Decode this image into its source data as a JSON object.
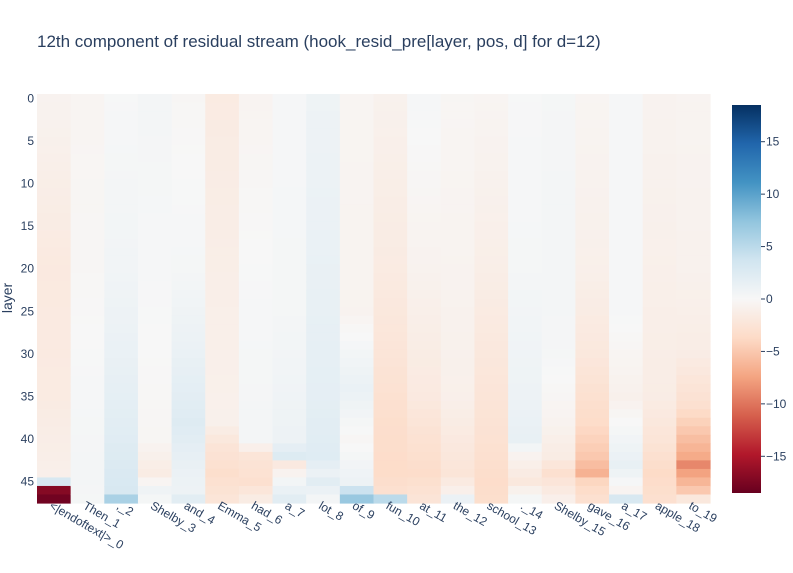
{
  "chart_data": {
    "type": "heatmap",
    "title": "12th component of residual stream (hook_resid_pre[layer, pos, d] for d=12)",
    "ylabel": "layer",
    "xlabel": "",
    "x_categories": [
      "<|endoftext|>_0",
      "Then_1",
      "_2",
      "Shelby_3",
      "and_4",
      "Emma_5",
      "had_6",
      "a_7",
      "lot_8",
      "of_9",
      "fun_10",
      "at_11",
      "the_12",
      "school_13",
      "._14",
      "Shelby_15",
      "gave_16",
      "a_17",
      "apple_18",
      "to_19"
    ],
    "x_tick_labels": [
      "<|endoftext|>_0",
      "Then_1",
      ",_2",
      "Shelby_3",
      "and_4",
      "Emma_5",
      "had_6",
      "a_7",
      "lot_8",
      "of_9",
      "fun_10",
      "at_11",
      "the_12",
      "school_13",
      "._14",
      "Shelby_15",
      "gave_16",
      "a_17",
      "apple_18",
      "to_19"
    ],
    "y_ticks": [
      0,
      5,
      10,
      15,
      20,
      25,
      30,
      35,
      40,
      45
    ],
    "n_layers": 48,
    "colorscale": "RdBu",
    "zlim": [
      -18.5,
      18.5
    ],
    "colorbar_ticks": [
      15,
      10,
      5,
      0,
      -5,
      -10,
      -15
    ],
    "colorbar_tick_labels": [
      "15",
      "10",
      "5",
      "0",
      "−5",
      "−10",
      "−15"
    ],
    "column_profiles": [
      {
        "token": "<|endoftext|>_0",
        "values_by_layer": [
          [
            0,
            -0.6
          ],
          [
            10,
            -1.2
          ],
          [
            20,
            -1.8
          ],
          [
            35,
            -1.6
          ],
          [
            44,
            -1.0
          ],
          [
            45,
            3.0
          ],
          [
            46,
            -17.0
          ],
          [
            47,
            -18.0
          ]
        ]
      },
      {
        "token": "Then_1",
        "values_by_layer": [
          [
            0,
            -0.4
          ],
          [
            20,
            -0.2
          ],
          [
            35,
            0.2
          ],
          [
            44,
            0.4
          ],
          [
            47,
            0.3
          ]
        ]
      },
      {
        "token": ",_2",
        "values_by_layer": [
          [
            0,
            0.1
          ],
          [
            20,
            0.6
          ],
          [
            30,
            1.3
          ],
          [
            38,
            2.0
          ],
          [
            44,
            2.8
          ],
          [
            46,
            3.0
          ],
          [
            47,
            6.0
          ]
        ]
      },
      {
        "token": "Shelby_3",
        "values_by_layer": [
          [
            0,
            0.4
          ],
          [
            25,
            0.1
          ],
          [
            40,
            -0.3
          ],
          [
            44,
            -1.5
          ],
          [
            46,
            0.8
          ],
          [
            47,
            0.3
          ]
        ]
      },
      {
        "token": "and_4",
        "values_by_layer": [
          [
            0,
            -0.2
          ],
          [
            20,
            0.3
          ],
          [
            30,
            1.3
          ],
          [
            38,
            2.4
          ],
          [
            44,
            1.2
          ],
          [
            46,
            1.0
          ],
          [
            47,
            2.0
          ]
        ]
      },
      {
        "token": "Emma_5",
        "values_by_layer": [
          [
            0,
            -1.6
          ],
          [
            20,
            -1.2
          ],
          [
            38,
            -0.9
          ],
          [
            41,
            -2.5
          ],
          [
            44,
            -3.2
          ],
          [
            47,
            -2.4
          ]
        ]
      },
      {
        "token": "had_6",
        "values_by_layer": [
          [
            0,
            -0.5
          ],
          [
            25,
            0.2
          ],
          [
            40,
            0.4
          ],
          [
            42,
            -2.4
          ],
          [
            45,
            -3.0
          ],
          [
            47,
            -1.5
          ]
        ]
      },
      {
        "token": "a_7",
        "values_by_layer": [
          [
            0,
            0.2
          ],
          [
            25,
            0.3
          ],
          [
            40,
            1.0
          ],
          [
            42,
            2.5
          ],
          [
            43,
            -1.8
          ],
          [
            45,
            0.5
          ],
          [
            47,
            2.0
          ]
        ]
      },
      {
        "token": "lot_8",
        "values_by_layer": [
          [
            0,
            0.9
          ],
          [
            15,
            1.2
          ],
          [
            35,
            1.8
          ],
          [
            42,
            2.3
          ],
          [
            44,
            1.2
          ],
          [
            45,
            2.0
          ],
          [
            47,
            0.4
          ]
        ]
      },
      {
        "token": "of_9",
        "values_by_layer": [
          [
            0,
            -0.4
          ],
          [
            25,
            -0.6
          ],
          [
            34,
            1.3
          ],
          [
            40,
            -0.2
          ],
          [
            45,
            1.0
          ],
          [
            47,
            7.0
          ]
        ]
      },
      {
        "token": "fun_10",
        "values_by_layer": [
          [
            0,
            -0.8
          ],
          [
            20,
            -1.6
          ],
          [
            30,
            -2.4
          ],
          [
            38,
            -3.2
          ],
          [
            44,
            -3.5
          ],
          [
            46,
            -3.0
          ],
          [
            47,
            5.0
          ]
        ]
      },
      {
        "token": "at_11",
        "values_by_layer": [
          [
            0,
            0.2
          ],
          [
            20,
            -0.7
          ],
          [
            35,
            -1.8
          ],
          [
            40,
            -2.8
          ],
          [
            44,
            -3.4
          ],
          [
            47,
            -2.5
          ]
        ]
      },
      {
        "token": "the_12",
        "values_by_layer": [
          [
            0,
            -0.3
          ],
          [
            20,
            -0.6
          ],
          [
            35,
            -1.0
          ],
          [
            40,
            -1.8
          ],
          [
            44,
            -2.4
          ],
          [
            46,
            -1.0
          ],
          [
            47,
            1.2
          ]
        ]
      },
      {
        "token": "school_13",
        "values_by_layer": [
          [
            0,
            -0.4
          ],
          [
            20,
            -1.2
          ],
          [
            30,
            -2.0
          ],
          [
            40,
            -2.8
          ],
          [
            45,
            -3.4
          ],
          [
            47,
            -3.2
          ]
        ]
      },
      {
        "token": "._14",
        "values_by_layer": [
          [
            0,
            0.1
          ],
          [
            20,
            0.3
          ],
          [
            35,
            1.0
          ],
          [
            40,
            1.5
          ],
          [
            42,
            -0.6
          ],
          [
            45,
            -2.0
          ],
          [
            47,
            0.3
          ]
        ]
      },
      {
        "token": "Shelby_15",
        "values_by_layer": [
          [
            0,
            0.3
          ],
          [
            20,
            0.4
          ],
          [
            30,
            0.3
          ],
          [
            38,
            -0.6
          ],
          [
            42,
            -1.5
          ],
          [
            44,
            -3.0
          ],
          [
            47,
            -1.0
          ]
        ]
      },
      {
        "token": "gave_16",
        "values_by_layer": [
          [
            0,
            -0.4
          ],
          [
            20,
            -1.0
          ],
          [
            30,
            -2.0
          ],
          [
            38,
            -3.5
          ],
          [
            42,
            -5.0
          ],
          [
            44,
            -6.5
          ],
          [
            45,
            -4.0
          ],
          [
            47,
            -3.0
          ]
        ]
      },
      {
        "token": "a_17",
        "values_by_layer": [
          [
            0,
            0.2
          ],
          [
            25,
            0.2
          ],
          [
            35,
            -0.9
          ],
          [
            40,
            0.6
          ],
          [
            43,
            1.5
          ],
          [
            46,
            -0.5
          ],
          [
            47,
            3.0
          ]
        ]
      },
      {
        "token": "apple_18",
        "values_by_layer": [
          [
            0,
            -0.6
          ],
          [
            20,
            -1.0
          ],
          [
            35,
            -1.4
          ],
          [
            40,
            -2.4
          ],
          [
            44,
            -3.6
          ],
          [
            47,
            -3.0
          ]
        ]
      },
      {
        "token": "to_19",
        "values_by_layer": [
          [
            0,
            -0.5
          ],
          [
            20,
            -0.8
          ],
          [
            30,
            -1.4
          ],
          [
            36,
            -3.0
          ],
          [
            39,
            -5.0
          ],
          [
            42,
            -7.0
          ],
          [
            43,
            -9.0
          ],
          [
            44,
            -7.5
          ],
          [
            46,
            -5.0
          ],
          [
            47,
            -2.0
          ]
        ]
      }
    ]
  }
}
